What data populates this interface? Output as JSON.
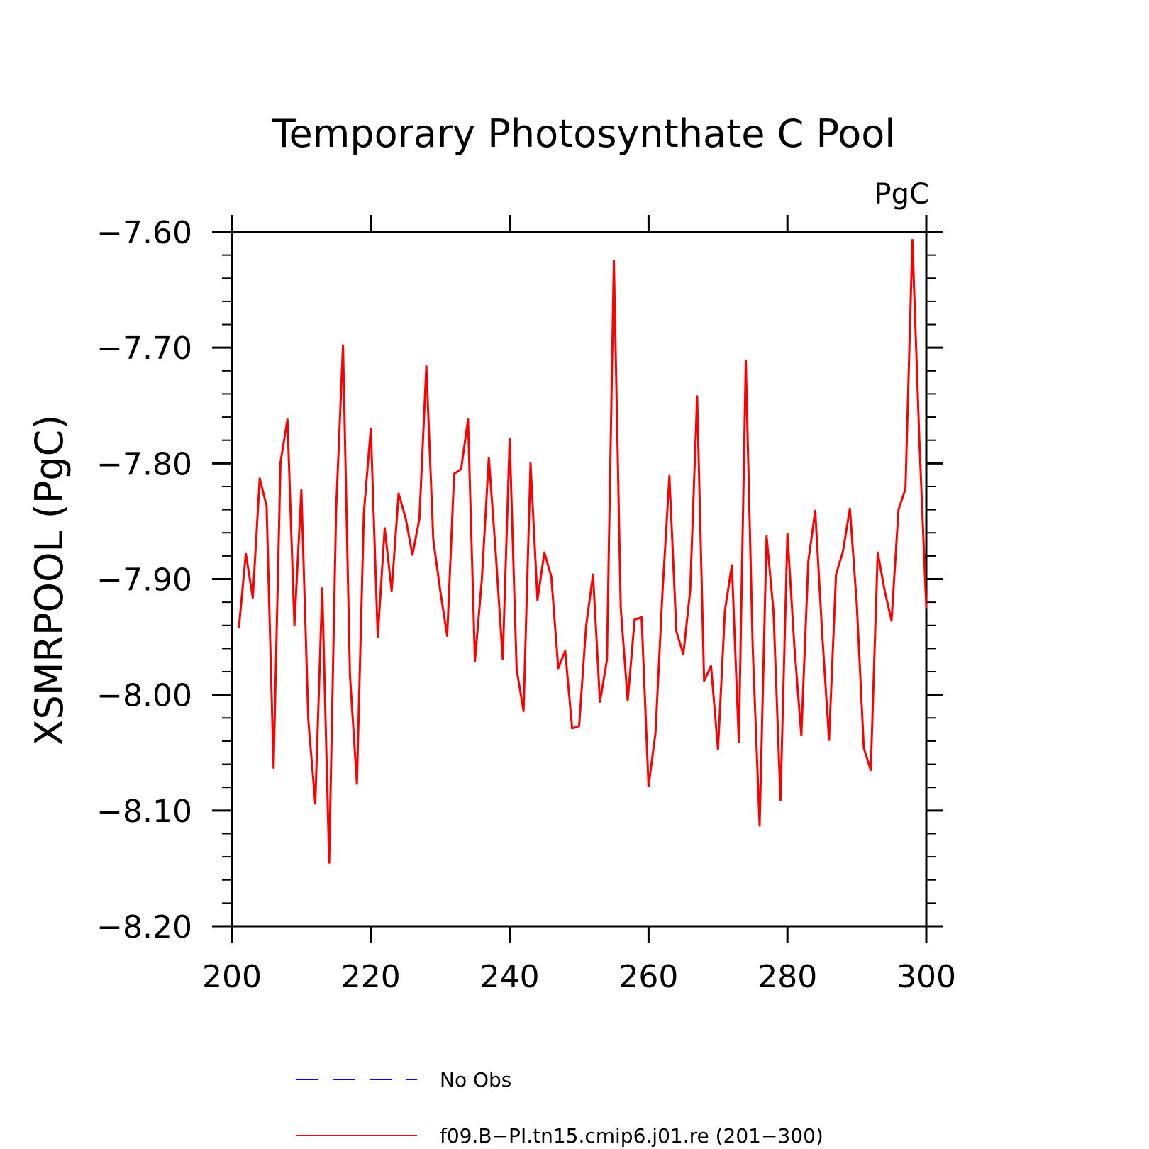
{
  "chart_data": {
    "type": "line",
    "title": "Temporary Photosynthate C Pool",
    "units": "PgC",
    "xlabel": "",
    "ylabel": "XSMRPOOL  (PgC)",
    "xlim": [
      200,
      300
    ],
    "ylim": [
      -8.2,
      -7.6
    ],
    "x_ticks": [
      200,
      220,
      240,
      260,
      280,
      300
    ],
    "x_tick_labels": [
      "200",
      "220",
      "240",
      "260",
      "280",
      "300"
    ],
    "y_ticks": [
      -7.6,
      -7.7,
      -7.8,
      -7.9,
      -8.0,
      -8.1,
      -8.2
    ],
    "y_tick_labels": [
      "−7.60",
      "−7.70",
      "−7.80",
      "−7.90",
      "−8.00",
      "−8.10",
      "−8.20"
    ],
    "y_minor_step": 0.02,
    "grid": false,
    "legend_position": "bottom",
    "legend": [
      {
        "label": "No Obs",
        "color": "#0000ff",
        "dash": true
      },
      {
        "label": "f09.B−PI.tn15.cmip6.j01.re (201−300)",
        "color": "#ff0000",
        "dash": false
      }
    ],
    "series": [
      {
        "name": "f09.B−PI.tn15.cmip6.j01.re (201−300)",
        "color": "#ff0000",
        "x": [
          201,
          202,
          203,
          204,
          205,
          206,
          207,
          208,
          209,
          210,
          211,
          212,
          213,
          214,
          215,
          216,
          217,
          218,
          219,
          220,
          221,
          222,
          223,
          224,
          225,
          226,
          227,
          228,
          229,
          230,
          231,
          232,
          233,
          234,
          235,
          236,
          237,
          238,
          239,
          240,
          241,
          242,
          243,
          244,
          245,
          246,
          247,
          248,
          249,
          250,
          251,
          252,
          253,
          254,
          255,
          256,
          257,
          258,
          259,
          260,
          261,
          262,
          263,
          264,
          265,
          266,
          267,
          268,
          269,
          270,
          271,
          272,
          273,
          274,
          275,
          276,
          277,
          278,
          279,
          280,
          281,
          282,
          283,
          284,
          285,
          286,
          287,
          288,
          289,
          290,
          291,
          292,
          293,
          294,
          295,
          296,
          297,
          298,
          299,
          300
        ],
        "values": [
          -7.942,
          -7.878,
          -7.916,
          -7.813,
          -7.837,
          -8.063,
          -7.799,
          -7.762,
          -7.94,
          -7.823,
          -8.022,
          -8.094,
          -7.908,
          -8.145,
          -7.84,
          -7.698,
          -7.983,
          -8.077,
          -7.843,
          -7.77,
          -7.95,
          -7.856,
          -7.91,
          -7.826,
          -7.847,
          -7.879,
          -7.848,
          -7.716,
          -7.866,
          -7.91,
          -7.949,
          -7.809,
          -7.805,
          -7.762,
          -7.971,
          -7.9,
          -7.795,
          -7.878,
          -7.969,
          -7.779,
          -7.978,
          -8.014,
          -7.8,
          -7.918,
          -7.877,
          -7.898,
          -7.977,
          -7.962,
          -8.029,
          -8.027,
          -7.941,
          -7.896,
          -8.006,
          -7.97,
          -7.625,
          -7.925,
          -8.005,
          -7.935,
          -7.933,
          -8.079,
          -8.033,
          -7.912,
          -7.811,
          -7.945,
          -7.965,
          -7.91,
          -7.742,
          -7.988,
          -7.975,
          -8.047,
          -7.927,
          -7.888,
          -8.041,
          -7.711,
          -7.96,
          -8.113,
          -7.863,
          -7.928,
          -8.091,
          -7.861,
          -7.958,
          -8.035,
          -7.885,
          -7.841,
          -7.947,
          -8.039,
          -7.896,
          -7.876,
          -7.839,
          -7.923,
          -8.046,
          -8.065,
          -7.877,
          -7.91,
          -7.936,
          -7.84,
          -7.822,
          -7.607,
          -7.78,
          -7.925
        ]
      }
    ]
  }
}
